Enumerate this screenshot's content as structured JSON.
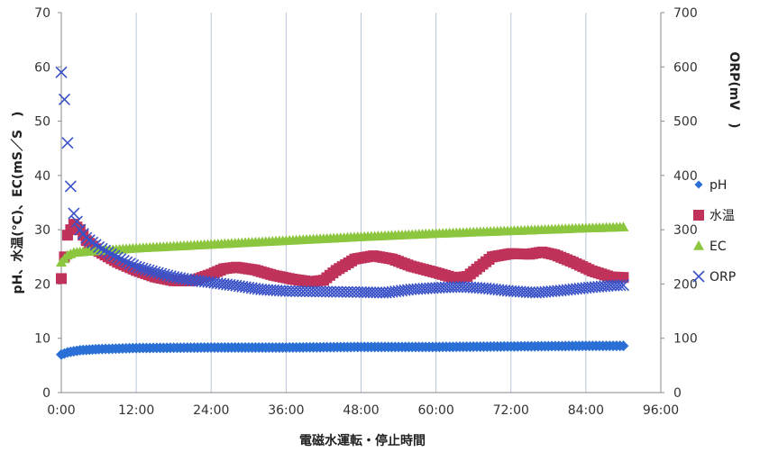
{
  "chart_data": {
    "type": "line",
    "xlabel": "電磁水運転・停止時間",
    "ylabel_left": "pH、水温(℃)、EC(mS／S　)",
    "ylabel_right": "ORP(mV　)",
    "x_ticks": [
      "0:00",
      "12:00",
      "24:00",
      "36:00",
      "48:00",
      "60:00",
      "72:00",
      "84:00",
      "96:00"
    ],
    "x_range_hours": [
      0,
      96
    ],
    "ylim_left": [
      0,
      70
    ],
    "ylim_right": [
      0,
      700
    ],
    "yticks_left": [
      "0",
      "10",
      "20",
      "30",
      "40",
      "50",
      "60",
      "70"
    ],
    "yticks_right": [
      "0",
      "100",
      "200",
      "300",
      "400",
      "500",
      "600",
      "700"
    ],
    "grid": "vertical",
    "legend_position": "right",
    "series": [
      {
        "name": "pH",
        "axis": "left",
        "marker": "diamond",
        "color": "#2A6FD6",
        "points": [
          [
            0,
            7.0
          ],
          [
            1,
            7.4
          ],
          [
            3,
            7.8
          ],
          [
            6,
            8.0
          ],
          [
            12,
            8.2
          ],
          [
            24,
            8.3
          ],
          [
            36,
            8.3
          ],
          [
            48,
            8.4
          ],
          [
            60,
            8.4
          ],
          [
            72,
            8.5
          ],
          [
            84,
            8.6
          ],
          [
            90,
            8.6
          ]
        ]
      },
      {
        "name": "水温",
        "axis": "left",
        "marker": "square",
        "color": "#C0325A",
        "points": [
          [
            0,
            21
          ],
          [
            0.5,
            25
          ],
          [
            1,
            29
          ],
          [
            2,
            31
          ],
          [
            3,
            30
          ],
          [
            4,
            28
          ],
          [
            6,
            26
          ],
          [
            9,
            24
          ],
          [
            12,
            22.5
          ],
          [
            15,
            21.3
          ],
          [
            18,
            20.6
          ],
          [
            21,
            20.6
          ],
          [
            24,
            21.8
          ],
          [
            26,
            22.8
          ],
          [
            28,
            23.1
          ],
          [
            31,
            22.6
          ],
          [
            34,
            21.6
          ],
          [
            37,
            20.9
          ],
          [
            40,
            20.4
          ],
          [
            42,
            20.7
          ],
          [
            44,
            22.5
          ],
          [
            47,
            24.6
          ],
          [
            50,
            25.2
          ],
          [
            53,
            24.6
          ],
          [
            56,
            23.3
          ],
          [
            60,
            22.1
          ],
          [
            63,
            21.1
          ],
          [
            65,
            21.4
          ],
          [
            67,
            23.2
          ],
          [
            69,
            25.0
          ],
          [
            72,
            25.6
          ],
          [
            75,
            25.5
          ],
          [
            77,
            25.9
          ],
          [
            79,
            25.4
          ],
          [
            82,
            24.0
          ],
          [
            85,
            22.4
          ],
          [
            88,
            21.3
          ],
          [
            90,
            21.2
          ]
        ]
      },
      {
        "name": "EC",
        "axis": "left",
        "marker": "triangle",
        "color": "#8CC63F",
        "points": [
          [
            0,
            24
          ],
          [
            1,
            25.3
          ],
          [
            2,
            25.8
          ],
          [
            4,
            26.0
          ],
          [
            12,
            26.6
          ],
          [
            24,
            27.3
          ],
          [
            36,
            28.0
          ],
          [
            48,
            28.7
          ],
          [
            60,
            29.3
          ],
          [
            72,
            29.8
          ],
          [
            84,
            30.3
          ],
          [
            90,
            30.5
          ]
        ]
      },
      {
        "name": "ORP",
        "axis": "right",
        "marker": "x",
        "color": "#3A52C8",
        "points": [
          [
            0,
            590
          ],
          [
            0.5,
            540
          ],
          [
            1,
            460
          ],
          [
            1.5,
            380
          ],
          [
            2,
            330
          ],
          [
            3,
            300
          ],
          [
            4,
            285
          ],
          [
            6,
            268
          ],
          [
            8,
            255
          ],
          [
            10,
            243
          ],
          [
            12,
            232
          ],
          [
            15,
            222
          ],
          [
            18,
            213
          ],
          [
            21,
            207
          ],
          [
            24,
            203
          ],
          [
            28,
            197
          ],
          [
            32,
            190
          ],
          [
            36,
            187
          ],
          [
            42,
            186
          ],
          [
            48,
            185
          ],
          [
            52,
            184
          ],
          [
            56,
            190
          ],
          [
            60,
            193
          ],
          [
            64,
            195
          ],
          [
            68,
            192
          ],
          [
            72,
            187
          ],
          [
            76,
            184
          ],
          [
            80,
            188
          ],
          [
            84,
            193
          ],
          [
            88,
            197
          ],
          [
            90,
            198
          ]
        ]
      }
    ]
  }
}
